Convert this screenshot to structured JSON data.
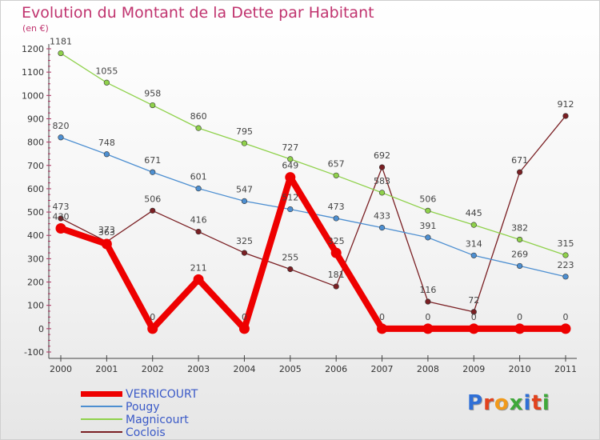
{
  "title": "Evolution du Montant de la Dette par Habitant",
  "unit": "(en €)",
  "logo": "Proxiti",
  "chart_data": {
    "type": "line",
    "title": "Evolution du Montant de la Dette par Habitant",
    "ylabel": "(en €)",
    "xlabel": "",
    "x": [
      "2000",
      "2001",
      "2002",
      "2003",
      "2004",
      "2005",
      "2006",
      "2007",
      "2008",
      "2009",
      "2010",
      "2011"
    ],
    "ylim": [
      -100,
      1200
    ],
    "yticks": [
      -100,
      0,
      100,
      200,
      300,
      400,
      500,
      600,
      700,
      800,
      900,
      1000,
      1100,
      1200
    ],
    "grid": false,
    "legend": "bottom-left",
    "series": [
      {
        "name": "VERRICOURT",
        "color": "#ee0000",
        "values": [
          430,
          363,
          0,
          211,
          0,
          649,
          325,
          0,
          0,
          0,
          0,
          0
        ]
      },
      {
        "name": "Pougy",
        "color": "#4d8fd1",
        "values": [
          820,
          748,
          671,
          601,
          547,
          512,
          473,
          433,
          391,
          314,
          269,
          223
        ]
      },
      {
        "name": "Magnicourt",
        "color": "#8fd14b",
        "values": [
          1181,
          1055,
          958,
          860,
          795,
          727,
          657,
          583,
          506,
          445,
          382,
          315
        ]
      },
      {
        "name": "Coclois",
        "color": "#7a1f23",
        "values": [
          473,
          373,
          506,
          416,
          325,
          255,
          181,
          692,
          116,
          72,
          671,
          912
        ]
      }
    ]
  }
}
